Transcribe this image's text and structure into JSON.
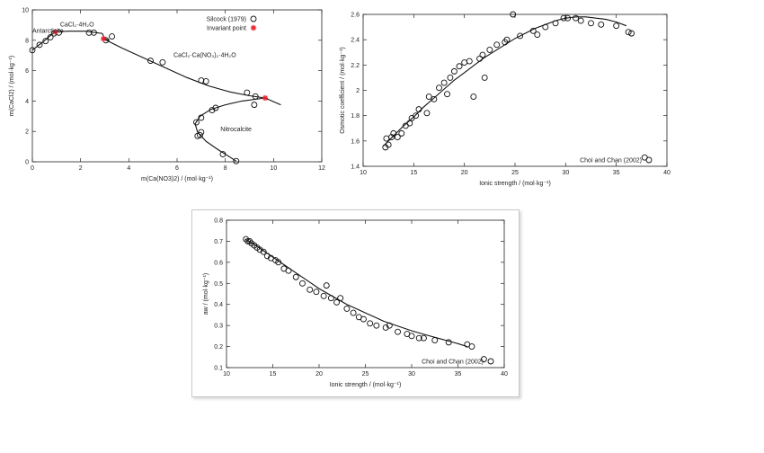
{
  "chart_data": [
    {
      "id": "phase",
      "type": "scatter",
      "xlabel": "m(Ca(NO3)2) / (mol·kg⁻¹)",
      "ylabel": "m(CaCl2) / (mol·kg⁻¹)",
      "xlim": [
        0,
        12
      ],
      "ylim": [
        0,
        10
      ],
      "x_ticks": [
        0,
        2,
        4,
        6,
        8,
        10,
        12
      ],
      "y_ticks": [
        0,
        2,
        4,
        6,
        8,
        10
      ],
      "grid": false,
      "legend_position": "top-right",
      "legend": [
        {
          "label": "Silcock (1979)",
          "marker": "circle"
        },
        {
          "label": "Invariant point",
          "marker": "asterisk",
          "color": "#e8202a"
        }
      ],
      "annotations": [
        {
          "text": "Antarcticite",
          "x": 0.0,
          "y": 8.5
        },
        {
          "text": "CaCl₂·4H₂O",
          "x": 1.15,
          "y": 8.9
        },
        {
          "text": "CaCl₂·Ca(NO₃)₂·4H₂O",
          "x": 5.85,
          "y": 6.9
        },
        {
          "text": "Nitrocalcite",
          "x": 7.8,
          "y": 2.0
        }
      ],
      "series": [
        {
          "name": "Silcock (1979)",
          "kind": "points",
          "x": [
            0.0,
            0.3,
            0.55,
            0.75,
            0.9,
            1.1,
            2.35,
            2.55,
            3.05,
            3.3,
            4.9,
            5.4,
            7.0,
            7.2,
            7.45,
            7.6,
            7.0,
            6.8,
            6.85,
            6.95,
            7.0,
            7.9,
            8.45,
            8.9,
            9.2,
            9.25
          ],
          "y": [
            7.35,
            7.7,
            7.95,
            8.2,
            8.45,
            8.5,
            8.5,
            8.5,
            8.0,
            8.25,
            6.65,
            6.55,
            5.35,
            5.3,
            3.4,
            3.55,
            2.9,
            2.6,
            1.7,
            1.75,
            1.95,
            0.5,
            0.05,
            4.55,
            3.75,
            4.3
          ]
        },
        {
          "name": "Invariant point",
          "kind": "points",
          "color": "#e8202a",
          "x": [
            0.95,
            2.95,
            9.65
          ],
          "y": [
            8.55,
            8.1,
            4.2
          ]
        },
        {
          "name": "",
          "kind": "line",
          "x": [
            0.0,
            0.2,
            0.45,
            0.7,
            0.95
          ],
          "y": [
            7.35,
            7.6,
            7.9,
            8.25,
            8.55
          ]
        },
        {
          "name": "",
          "kind": "line",
          "x": [
            0.95,
            1.5,
            2.2,
            2.9,
            3.0,
            3.2
          ],
          "y": [
            8.55,
            8.6,
            8.6,
            8.45,
            8.1,
            8.0
          ]
        },
        {
          "name": "",
          "kind": "line",
          "x": [
            2.95,
            3.7,
            4.6,
            5.5,
            6.4,
            7.3,
            8.2,
            9.0,
            9.65,
            10.3
          ],
          "y": [
            8.1,
            7.5,
            6.85,
            6.2,
            5.55,
            5.0,
            4.6,
            4.35,
            4.2,
            3.75
          ]
        },
        {
          "name": "",
          "kind": "line",
          "x": [
            9.65,
            8.7,
            8.0,
            7.4,
            6.95,
            6.75,
            6.85,
            7.2,
            7.7,
            8.1,
            8.45
          ],
          "y": [
            4.2,
            4.0,
            3.75,
            3.45,
            3.0,
            2.5,
            1.95,
            1.35,
            0.8,
            0.4,
            0.05
          ]
        }
      ]
    },
    {
      "id": "osmotic",
      "type": "scatter",
      "xlabel": "Ionic strength / (mol·kg⁻¹)",
      "ylabel": "Osmotic coefficient / (mol·kg⁻¹)",
      "xlim": [
        10,
        40
      ],
      "ylim": [
        1.4,
        2.6
      ],
      "x_ticks": [
        10,
        15,
        20,
        25,
        30,
        35,
        40
      ],
      "y_ticks": [
        1.4,
        1.6,
        1.8,
        2.0,
        2.2,
        2.4,
        2.6
      ],
      "grid": false,
      "legend_position": "bottom-right",
      "legend": [
        {
          "label": "Choi and Chan (2002)",
          "marker": "circle"
        }
      ],
      "series": [
        {
          "name": "Choi and Chan (2002)",
          "kind": "points",
          "x": [
            12.2,
            12.3,
            12.5,
            12.8,
            13.0,
            13.4,
            13.8,
            14.2,
            14.6,
            14.8,
            15.2,
            15.5,
            16.3,
            16.5,
            17.0,
            17.5,
            18.0,
            18.3,
            18.6,
            19.0,
            19.5,
            20.0,
            20.5,
            20.9,
            21.5,
            21.8,
            22.0,
            22.5,
            23.2,
            24.0,
            24.2,
            24.8,
            25.5,
            26.8,
            27.2,
            28.0,
            29.0,
            29.8,
            30.2,
            31.0,
            31.5,
            32.5,
            33.5,
            35.0,
            36.2,
            36.5,
            37.8
          ],
          "y": [
            1.55,
            1.62,
            1.57,
            1.63,
            1.66,
            1.63,
            1.66,
            1.72,
            1.74,
            1.78,
            1.8,
            1.85,
            1.82,
            1.95,
            1.93,
            2.02,
            2.06,
            1.97,
            2.1,
            2.15,
            2.19,
            2.22,
            2.23,
            1.95,
            2.25,
            2.28,
            2.1,
            2.32,
            2.36,
            2.38,
            2.4,
            2.6,
            2.43,
            2.47,
            2.44,
            2.5,
            2.53,
            2.57,
            2.57,
            2.57,
            2.55,
            2.53,
            2.52,
            2.51,
            2.46,
            2.45,
            1.47
          ]
        },
        {
          "name": "",
          "kind": "line",
          "x": [
            12.0,
            13.0,
            14.0,
            15.0,
            16.0,
            17.0,
            18.0,
            19.0,
            20.0,
            21.0,
            22.0,
            23.0,
            24.0,
            25.0,
            26.0,
            27.0,
            28.0,
            29.0,
            30.0,
            31.0,
            32.0,
            33.0,
            34.0,
            35.0,
            36.0
          ],
          "y": [
            1.56,
            1.64,
            1.72,
            1.79,
            1.87,
            1.94,
            2.01,
            2.08,
            2.14,
            2.2,
            2.26,
            2.31,
            2.36,
            2.41,
            2.45,
            2.49,
            2.52,
            2.55,
            2.57,
            2.58,
            2.58,
            2.57,
            2.56,
            2.54,
            2.51
          ]
        }
      ]
    },
    {
      "id": "aw",
      "type": "scatter",
      "xlabel": "Ionic strength / (mol·kg⁻¹)",
      "ylabel": "aw / (mol·kg⁻¹)",
      "xlim": [
        10,
        40
      ],
      "ylim": [
        0.1,
        0.8
      ],
      "x_ticks": [
        10,
        15,
        20,
        25,
        30,
        35,
        40
      ],
      "y_ticks": [
        0.1,
        0.2,
        0.3,
        0.4,
        0.5,
        0.6,
        0.7,
        0.8
      ],
      "grid": false,
      "legend_position": "bottom-right",
      "legend": [
        {
          "label": "Choi and Chan (2002)",
          "marker": "circle"
        }
      ],
      "series": [
        {
          "name": "Choi and Chan (2002)",
          "kind": "points",
          "x": [
            12.1,
            12.3,
            12.5,
            12.7,
            13.0,
            13.3,
            13.6,
            14.0,
            14.4,
            14.8,
            15.3,
            15.6,
            16.2,
            16.7,
            17.5,
            18.2,
            19.0,
            19.7,
            20.5,
            20.8,
            21.3,
            21.9,
            22.3,
            23.0,
            23.7,
            24.3,
            24.8,
            25.5,
            26.2,
            27.2,
            27.6,
            28.5,
            29.5,
            30.0,
            30.8,
            31.3,
            32.5,
            34.0,
            36.0,
            36.5,
            37.8
          ],
          "y": [
            0.71,
            0.7,
            0.7,
            0.69,
            0.68,
            0.67,
            0.66,
            0.65,
            0.63,
            0.62,
            0.61,
            0.6,
            0.57,
            0.56,
            0.53,
            0.5,
            0.47,
            0.46,
            0.44,
            0.49,
            0.43,
            0.41,
            0.43,
            0.38,
            0.36,
            0.34,
            0.33,
            0.31,
            0.3,
            0.29,
            0.3,
            0.27,
            0.26,
            0.25,
            0.24,
            0.24,
            0.23,
            0.22,
            0.21,
            0.2,
            0.14
          ]
        },
        {
          "name": "",
          "kind": "line",
          "x": [
            12.0,
            13.0,
            14.0,
            15.0,
            16.0,
            17.0,
            18.0,
            19.0,
            20.0,
            21.0,
            22.0,
            23.0,
            24.0,
            25.0,
            26.0,
            27.0,
            28.0,
            29.0,
            30.0,
            31.0,
            32.0,
            33.0,
            34.0,
            35.0,
            36.0
          ],
          "y": [
            0.71,
            0.685,
            0.655,
            0.625,
            0.595,
            0.565,
            0.535,
            0.505,
            0.475,
            0.45,
            0.425,
            0.4,
            0.38,
            0.36,
            0.34,
            0.32,
            0.305,
            0.29,
            0.275,
            0.262,
            0.25,
            0.238,
            0.226,
            0.214,
            0.2
          ]
        }
      ]
    }
  ]
}
